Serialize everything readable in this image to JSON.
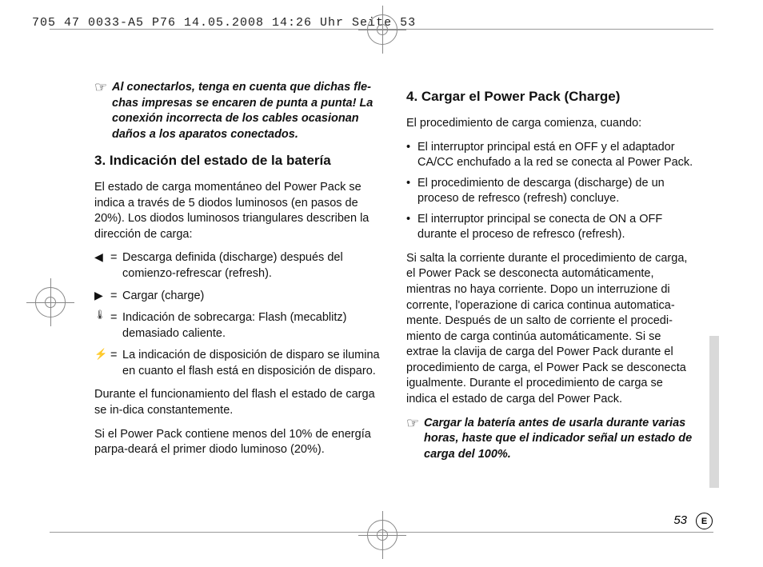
{
  "header": "705 47 0033-A5  P76  14.05.2008  14:26 Uhr  Seite 53",
  "left": {
    "note": "Al conectarlos, tenga en cuenta que dichas fle­chas impresas se encaren de punta a punta! La conexión incorrecta de los cables ocasionan daños a los aparatos conectados.",
    "h3": "3. Indicación del estado de la batería",
    "p1": "El estado de carga momentáneo del Power Pack se indica a través de 5 diodos luminosos (en pasos de 20%). Los diodos luminosos triangulares describen la dirección de carga:",
    "defs": [
      {
        "sym": "◀",
        "txt": "Descarga definida (discharge) después del comienzo-refrescar (refresh)."
      },
      {
        "sym": "▶",
        "txt": "Cargar (charge)"
      },
      {
        "sym": "🌡",
        "txt": "Indicación de sobrecarga: Flash (mecablitz) demasiado caliente."
      },
      {
        "sym": "⚡",
        "txt": "La indicación de disposición de disparo se ilu­mina en cuanto el flash está en disposición de disparo."
      }
    ],
    "p2": "Durante el funcionamiento del flash el estado de carga se in-dica constantemente.",
    "p3": "Si el Power Pack contiene menos del 10% de ener­gía parpa-deará el primer diodo luminoso (20%)."
  },
  "right": {
    "h4": "4. Cargar el Power Pack (Charge)",
    "p1": "El procedimiento de carga comienza, cuando:",
    "bullets": [
      "El interruptor principal está en OFF y el adapta­dor CA/CC enchufado a la red se conecta al Power Pack.",
      "El procedimiento de descarga (discharge) de un proceso de refresco (refresh) concluye.",
      "El interruptor principal se conecta de ON a OFF durante el proceso de refresco (refresh)."
    ],
    "p2": "Si salta la corriente durante el procedimiento de car­ga, el Power Pack se desconecta automáticamente, mientras no haya corriente.  Dopo un interruzione di corrente, l'operazione di carica continua automatica­mente. Después de un salto de corriente el procedi­miento de carga continúa automáticamente. Si se extrae la clavija de carga del Power Pack durante el procedimiento de carga, el Power Pack se desconecta igualmente. Durante el procedimiento de carga se indica el estado de carga del Power Pack.",
    "note": "Cargar la batería antes de usarla durante varias horas, haste que el indicador señal un estado de carga del 100%."
  },
  "page": "53",
  "lang": "E"
}
